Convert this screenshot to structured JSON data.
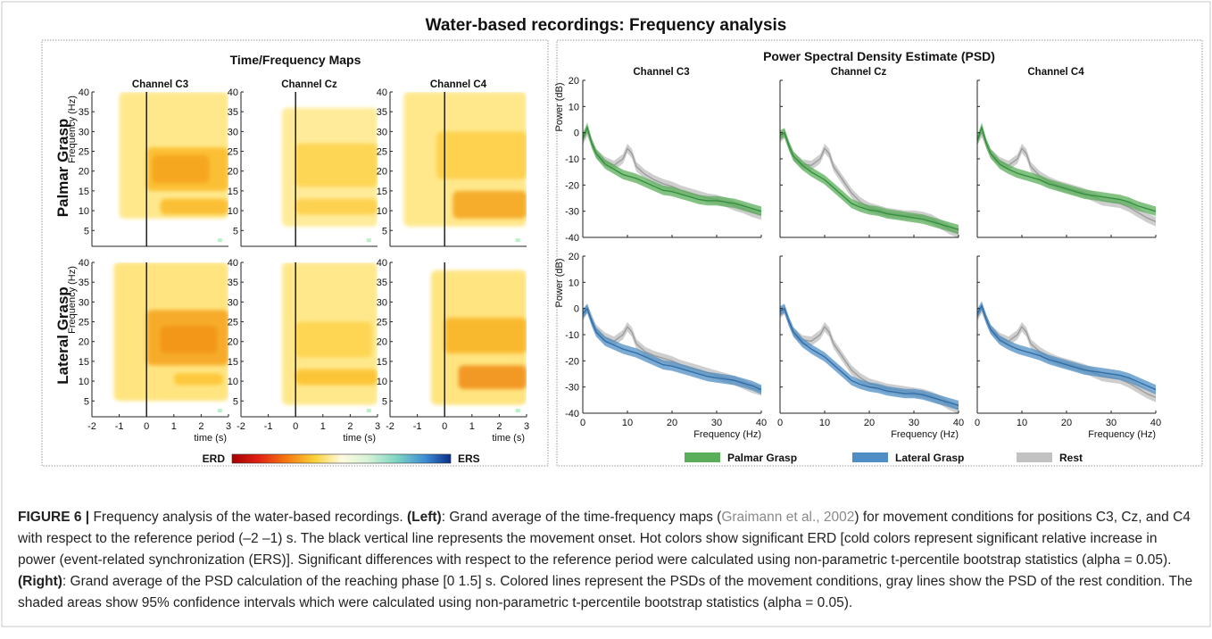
{
  "figure_title": "Water-based recordings: Frequency analysis",
  "left_panel": {
    "title": "Time/Frequency Maps",
    "channels": [
      "Channel C3",
      "Channel Cz",
      "Channel C4"
    ],
    "rows": [
      "Palmar Grasp",
      "Lateral Grasp"
    ],
    "ylabel": "Frequency (Hz)",
    "xlabel": "time (s)",
    "colorbar": {
      "left_label": "ERD",
      "right_label": "ERS"
    }
  },
  "right_panel": {
    "title": "Power Spectral Density Estimate (PSD)",
    "channels": [
      "Channel C3",
      "Channel Cz",
      "Channel C4"
    ],
    "ylabel": "Power (dB)",
    "xlabel": "Frequency (Hz)",
    "legend": [
      {
        "label": "Palmar Grasp",
        "color": "#5aae5a"
      },
      {
        "label": "Lateral Grasp",
        "color": "#4f8ec4"
      },
      {
        "label": "Rest",
        "color": "#c2c2c2"
      }
    ]
  },
  "chart_data": [
    {
      "type": "heatmap",
      "title": "Time/Frequency Maps",
      "xlabel": "time (s)",
      "ylabel": "Frequency (Hz)",
      "xlim": [
        -2,
        3
      ],
      "ylim": [
        1,
        40
      ],
      "xticks": [
        -2,
        -1,
        0,
        1,
        2,
        3
      ],
      "yticks": [
        5,
        10,
        15,
        20,
        25,
        30,
        35,
        40
      ],
      "colorscale": [
        "ERD",
        "ERS"
      ],
      "maps": [
        {
          "row": "Palmar Grasp",
          "channel": "Channel C3",
          "blobs": [
            {
              "t": [
                -1.0,
                3.0
              ],
              "f": [
                8,
                40
              ],
              "w": 0.25
            },
            {
              "t": [
                0.0,
                3.0
              ],
              "f": [
                15,
                26
              ],
              "w": 0.7
            },
            {
              "t": [
                0.2,
                2.3
              ],
              "f": [
                17,
                24
              ],
              "w": 0.85
            },
            {
              "t": [
                0.5,
                3.0
              ],
              "f": [
                9,
                13
              ],
              "w": 0.7
            }
          ]
        },
        {
          "row": "Palmar Grasp",
          "channel": "Channel Cz",
          "blobs": [
            {
              "t": [
                -0.5,
                3.0
              ],
              "f": [
                6,
                36
              ],
              "w": 0.2
            },
            {
              "t": [
                0.0,
                3.0
              ],
              "f": [
                16,
                27
              ],
              "w": 0.45
            },
            {
              "t": [
                0.0,
                3.0
              ],
              "f": [
                9,
                13
              ],
              "w": 0.5
            }
          ]
        },
        {
          "row": "Palmar Grasp",
          "channel": "Channel C4",
          "blobs": [
            {
              "t": [
                -1.5,
                3.0
              ],
              "f": [
                6,
                40
              ],
              "w": 0.25
            },
            {
              "t": [
                -0.3,
                3.0
              ],
              "f": [
                18,
                30
              ],
              "w": 0.5
            },
            {
              "t": [
                0.3,
                3.0
              ],
              "f": [
                8,
                15
              ],
              "w": 0.85
            }
          ]
        },
        {
          "row": "Lateral Grasp",
          "channel": "Channel C3",
          "blobs": [
            {
              "t": [
                -1.2,
                3.0
              ],
              "f": [
                5,
                40
              ],
              "w": 0.3
            },
            {
              "t": [
                0.0,
                3.0
              ],
              "f": [
                14,
                28
              ],
              "w": 0.85
            },
            {
              "t": [
                0.5,
                2.6
              ],
              "f": [
                17,
                24
              ],
              "w": 0.95
            },
            {
              "t": [
                1.0,
                2.8
              ],
              "f": [
                9,
                12
              ],
              "w": 0.6
            }
          ]
        },
        {
          "row": "Lateral Grasp",
          "channel": "Channel Cz",
          "blobs": [
            {
              "t": [
                -0.5,
                3.0
              ],
              "f": [
                4,
                40
              ],
              "w": 0.25
            },
            {
              "t": [
                0.0,
                2.8
              ],
              "f": [
                16,
                25
              ],
              "w": 0.45
            },
            {
              "t": [
                0.0,
                3.0
              ],
              "f": [
                9,
                13
              ],
              "w": 0.65
            }
          ]
        },
        {
          "row": "Lateral Grasp",
          "channel": "Channel C4",
          "blobs": [
            {
              "t": [
                -0.5,
                3.0
              ],
              "f": [
                4,
                38
              ],
              "w": 0.3
            },
            {
              "t": [
                0.0,
                3.0
              ],
              "f": [
                17,
                26
              ],
              "w": 0.75
            },
            {
              "t": [
                0.5,
                3.0
              ],
              "f": [
                8,
                14
              ],
              "w": 1.0
            }
          ]
        }
      ]
    },
    {
      "type": "line",
      "title": "Power Spectral Density Estimate (PSD)",
      "xlabel": "Frequency (Hz)",
      "ylabel": "Power (dB)",
      "xlim": [
        0,
        40
      ],
      "ylim": [
        -40,
        20
      ],
      "xticks": [
        0,
        10,
        20,
        30,
        40
      ],
      "yticks": [
        -40,
        -30,
        -20,
        -10,
        0,
        10,
        20
      ],
      "x": [
        0,
        1,
        2,
        3,
        5,
        7,
        9,
        10,
        11,
        12,
        14,
        16,
        18,
        20,
        22,
        24,
        26,
        28,
        30,
        32,
        34,
        36,
        38,
        40
      ],
      "panels": [
        {
          "row": "Palmar Grasp",
          "channel": "Channel C3",
          "series": [
            {
              "name": "Palmar Grasp",
              "values": [
                -2,
                2,
                -4,
                -8,
                -12,
                -14,
                -16,
                -16.5,
                -17,
                -17.5,
                -19,
                -20.5,
                -22,
                -22.5,
                -23.5,
                -24.5,
                -25.5,
                -26,
                -26,
                -26.5,
                -27,
                -28,
                -29,
                -30
              ]
            },
            {
              "name": "Rest",
              "values": [
                -3,
                0.5,
                -4,
                -8,
                -11,
                -12.5,
                -10,
                -6,
                -8,
                -13,
                -16,
                -18,
                -19.5,
                -20.5,
                -22,
                -23,
                -24,
                -25,
                -25.5,
                -26.5,
                -28,
                -29,
                -30.5,
                -31.5
              ]
            }
          ]
        },
        {
          "row": "Palmar Grasp",
          "channel": "Channel Cz",
          "series": [
            {
              "name": "Palmar Grasp",
              "values": [
                -1,
                0,
                -5,
                -9,
                -12.5,
                -15,
                -17,
                -18,
                -19.5,
                -21,
                -24,
                -27,
                -28.5,
                -29.5,
                -30,
                -31,
                -31.5,
                -32,
                -32.5,
                -33,
                -34,
                -35,
                -36,
                -37
              ]
            },
            {
              "name": "Rest",
              "values": [
                -2,
                -0.5,
                -5,
                -9,
                -12,
                -12.5,
                -10,
                -6,
                -8,
                -13,
                -18,
                -23,
                -26.5,
                -28.5,
                -29.5,
                -30.5,
                -31,
                -31.5,
                -31.5,
                -32,
                -33,
                -35,
                -37,
                -38.5
              ]
            }
          ]
        },
        {
          "row": "Palmar Grasp",
          "channel": "Channel C4",
          "series": [
            {
              "name": "Palmar Grasp",
              "values": [
                -3,
                2,
                -4,
                -8,
                -12,
                -14,
                -15.5,
                -16,
                -16.5,
                -17,
                -18,
                -19.5,
                -20.5,
                -21.5,
                -22.5,
                -23.5,
                -24,
                -24.5,
                -25,
                -25.5,
                -26.5,
                -28,
                -29,
                -30
              ]
            },
            {
              "name": "Rest",
              "values": [
                -3,
                0,
                -4,
                -8,
                -11,
                -12.5,
                -10,
                -6,
                -8,
                -13,
                -16.5,
                -18.5,
                -20,
                -21,
                -22,
                -23,
                -24.5,
                -26,
                -26.5,
                -27,
                -28.5,
                -30.5,
                -32.5,
                -34
              ]
            }
          ]
        },
        {
          "row": "Lateral Grasp",
          "channel": "Channel C3",
          "series": [
            {
              "name": "Lateral Grasp",
              "values": [
                -2,
                0,
                -5,
                -9,
                -12.5,
                -14,
                -15.5,
                -16,
                -16.5,
                -17,
                -18.5,
                -20,
                -21.5,
                -22,
                -23,
                -24,
                -25,
                -26,
                -26.5,
                -27,
                -27.5,
                -28.5,
                -29.5,
                -31
              ]
            },
            {
              "name": "Rest",
              "values": [
                -3,
                0,
                -4,
                -8,
                -11,
                -12.5,
                -10,
                -7,
                -9,
                -13.5,
                -16.5,
                -18,
                -19,
                -20,
                -21.5,
                -22.5,
                -23.5,
                -24.5,
                -25.5,
                -26.5,
                -27.5,
                -29,
                -30.5,
                -31.5
              ]
            }
          ]
        },
        {
          "row": "Lateral Grasp",
          "channel": "Channel Cz",
          "series": [
            {
              "name": "Lateral Grasp",
              "values": [
                -1,
                0,
                -5,
                -9,
                -13,
                -15.5,
                -17.5,
                -18.5,
                -20,
                -21.5,
                -24.5,
                -27.5,
                -29,
                -30,
                -30.5,
                -31.5,
                -32,
                -32.5,
                -32.5,
                -33,
                -34,
                -35,
                -36,
                -37
              ]
            },
            {
              "name": "Rest",
              "values": [
                -2,
                -0.5,
                -5,
                -9,
                -12,
                -12.5,
                -10,
                -7,
                -9,
                -13.5,
                -18.5,
                -23.5,
                -26.5,
                -28.5,
                -29.5,
                -30.5,
                -31,
                -31.5,
                -32,
                -32.5,
                -33.5,
                -35,
                -37,
                -38.5
              ]
            }
          ]
        },
        {
          "row": "Lateral Grasp",
          "channel": "Channel C4",
          "series": [
            {
              "name": "Lateral Grasp",
              "values": [
                -2,
                1,
                -4,
                -8,
                -12,
                -14,
                -15.5,
                -16,
                -16.5,
                -17,
                -18,
                -19.5,
                -20.5,
                -21.5,
                -22.5,
                -23.5,
                -24,
                -24.5,
                -25,
                -25.5,
                -26.5,
                -28,
                -29.5,
                -31
              ]
            },
            {
              "name": "Rest",
              "values": [
                -3,
                0,
                -4,
                -8,
                -11,
                -12.5,
                -10,
                -7,
                -9,
                -13.5,
                -16.5,
                -18.5,
                -20,
                -21,
                -22,
                -23,
                -24.5,
                -26,
                -26.5,
                -27,
                -28.5,
                -30.5,
                -32.5,
                -34
              ]
            }
          ]
        }
      ]
    }
  ],
  "caption": {
    "label": "FIGURE 6 |",
    "p1": "Frequency analysis of the water-based recordings.",
    "left_label": "(Left)",
    "p2": ": Grand average of the time-frequency maps (",
    "citation": "Graimann et al., 2002",
    "p3": ") for movement conditions for positions C3, Cz, and C4 with respect to the reference period (–2 –1) s. The black vertical line represents the movement onset. Hot colors show significant ERD [cold colors represent significant relative increase in power (event-related synchronization (ERS)]. Significant differences with respect to the reference period were calculated using non-parametric t-percentile bootstrap statistics (alpha = 0.05).",
    "right_label": "(Right)",
    "p4": ": Grand average of the PSD calculation of the reaching phase [0 1.5] s. Colored lines represent the PSDs of the movement conditions, gray lines show the PSD of the rest condition. The shaded areas show 95% confidence intervals which were calculated using non-parametric t-percentile bootstrap statistics (alpha = 0.05)."
  }
}
